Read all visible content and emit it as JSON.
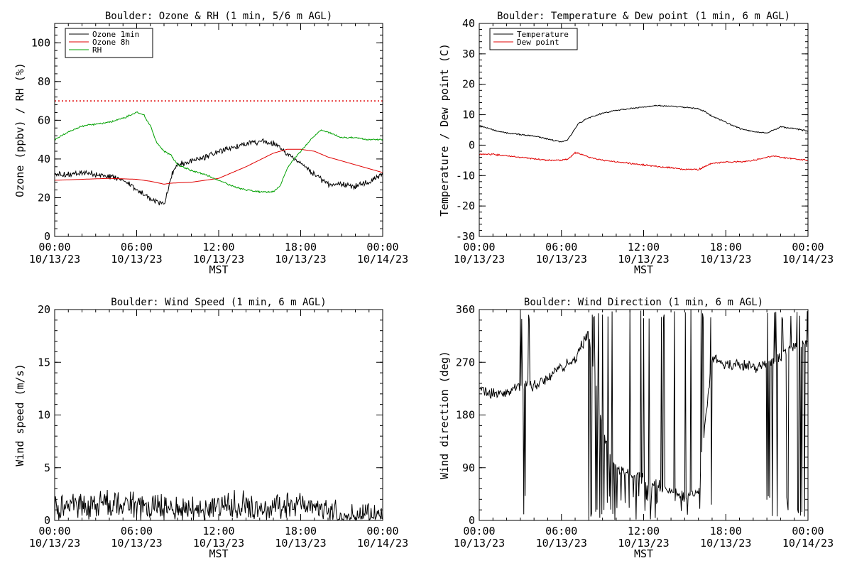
{
  "chart_data": [
    {
      "type": "line",
      "title": "Boulder: Ozone & RH (1 min, 5/6 m AGL)",
      "ylabel": "Ozone (ppbv) / RH (%)",
      "xlabel": "MST",
      "ylim": [
        0,
        110
      ],
      "yticks": [
        0,
        20,
        40,
        60,
        80,
        100
      ],
      "xlim": [
        0,
        24
      ],
      "xticks": [
        0,
        6,
        12,
        18,
        24
      ],
      "xtick_labels": [
        [
          "00:00",
          "10/13/23"
        ],
        [
          "06:00",
          "10/13/23"
        ],
        [
          "12:00",
          "10/13/23"
        ],
        [
          "18:00",
          "10/13/23"
        ],
        [
          "00:00",
          "10/14/23"
        ]
      ],
      "legend": "top-left",
      "reference_line": {
        "y": 70,
        "color": "#e00000",
        "style": "dotted"
      },
      "series": [
        {
          "name": "Ozone 1min",
          "color": "#000000",
          "noise": 1.8,
          "x": [
            0,
            1,
            2,
            3,
            4,
            5,
            5.5,
            6,
            6.5,
            7,
            7.5,
            8,
            8.3,
            8.6,
            9,
            10,
            11,
            12,
            13,
            14,
            15,
            16,
            16.5,
            17,
            17.5,
            18,
            19,
            20,
            21,
            22,
            23,
            24
          ],
          "y": [
            32,
            32,
            33,
            32,
            31,
            29,
            27,
            24,
            22,
            20,
            18,
            17,
            24,
            33,
            37,
            39,
            41,
            44,
            46,
            48,
            49,
            48,
            46,
            43,
            40,
            38,
            32,
            27,
            27,
            26,
            28,
            32
          ]
        },
        {
          "name": "Ozone 8h",
          "color": "#e00000",
          "noise": 0,
          "x": [
            0,
            2,
            4,
            6,
            7,
            8,
            8.5,
            10,
            12,
            14,
            16,
            17,
            17.5,
            18,
            19,
            20,
            22,
            24
          ],
          "y": [
            29,
            29.5,
            30,
            29.5,
            28.5,
            27,
            27.5,
            28,
            30,
            36,
            43,
            45,
            45,
            45,
            44,
            41,
            37,
            33
          ]
        },
        {
          "name": "RH",
          "color": "#00a000",
          "noise": 0.5,
          "x": [
            0,
            0.5,
            1,
            2,
            3,
            4,
            5,
            6,
            6.5,
            7,
            7.5,
            8,
            8.5,
            9,
            10,
            11,
            12,
            13,
            14,
            15,
            16,
            16.5,
            17,
            17.5,
            18,
            18.5,
            19,
            19.5,
            20,
            21,
            22,
            23,
            24
          ],
          "y": [
            50,
            52,
            54,
            57,
            58,
            59,
            61,
            64,
            63,
            57,
            48,
            44,
            42,
            37,
            34,
            32,
            29,
            26,
            24,
            23,
            23,
            26,
            35,
            40,
            44,
            48,
            52,
            55,
            54,
            51,
            51,
            50,
            50
          ]
        }
      ]
    },
    {
      "type": "line",
      "title": "Boulder: Temperature & Dew point (1 min, 6 m AGL)",
      "ylabel": "Temperature / Dew point (C)",
      "xlabel": "MST",
      "ylim": [
        -30,
        40
      ],
      "yticks": [
        -30,
        -20,
        -10,
        0,
        10,
        20,
        30,
        40
      ],
      "xlim": [
        0,
        24
      ],
      "xticks": [
        0,
        6,
        12,
        18,
        24
      ],
      "xtick_labels": [
        [
          "00:00",
          "10/13/23"
        ],
        [
          "06:00",
          "10/13/23"
        ],
        [
          "12:00",
          "10/13/23"
        ],
        [
          "18:00",
          "10/13/23"
        ],
        [
          "00:00",
          "10/14/23"
        ]
      ],
      "legend": "top-left",
      "series": [
        {
          "name": "Temperature",
          "color": "#000000",
          "noise": 0.25,
          "x": [
            0,
            1,
            2,
            3,
            4,
            5,
            5.5,
            6,
            6.4,
            6.8,
            7.2,
            8,
            9,
            10,
            11,
            12,
            13,
            14,
            15,
            16,
            16.5,
            17,
            18,
            19,
            20,
            21,
            21.5,
            22,
            23,
            24
          ],
          "y": [
            6.5,
            5,
            4,
            3.5,
            3,
            2,
            1.5,
            1,
            1.5,
            4,
            7,
            9,
            10.5,
            11.5,
            12,
            12.5,
            13,
            12.8,
            12.5,
            12,
            11,
            9.5,
            7.5,
            5.5,
            4.5,
            4,
            5,
            6,
            5.5,
            4.5
          ]
        },
        {
          "name": "Dew point",
          "color": "#e00000",
          "noise": 0.3,
          "x": [
            0,
            1,
            2,
            3,
            4,
            5,
            6,
            6.5,
            7,
            7.5,
            8,
            9,
            10,
            11,
            12,
            13,
            14,
            15,
            16,
            16.5,
            17,
            18,
            19,
            20,
            21,
            21.5,
            22,
            23,
            24
          ],
          "y": [
            -3,
            -3,
            -3.5,
            -4,
            -4.5,
            -5,
            -5,
            -4.5,
            -2.5,
            -3,
            -4,
            -5,
            -5.5,
            -6,
            -6.5,
            -7,
            -7.5,
            -8,
            -8,
            -7,
            -6,
            -5.5,
            -5.5,
            -5,
            -4,
            -3.5,
            -4,
            -4.5,
            -5
          ]
        }
      ]
    },
    {
      "type": "line",
      "title": "Boulder: Wind Speed (1 min, 6 m AGL)",
      "ylabel": "Wind speed (m/s)",
      "xlabel": "MST",
      "ylim": [
        0,
        20
      ],
      "yticks": [
        0,
        5,
        10,
        15,
        20
      ],
      "xlim": [
        0,
        24
      ],
      "xticks": [
        0,
        6,
        12,
        18,
        24
      ],
      "xtick_labels": [
        [
          "00:00",
          "10/13/23"
        ],
        [
          "06:00",
          "10/13/23"
        ],
        [
          "12:00",
          "10/13/23"
        ],
        [
          "18:00",
          "10/13/23"
        ],
        [
          "00:00",
          "10/14/23"
        ]
      ],
      "series": [
        {
          "color": "#000000",
          "noise": 1.5,
          "x": [
            0,
            1,
            2,
            3,
            4,
            5,
            6,
            7,
            8,
            9,
            10,
            11,
            12,
            13,
            14,
            15,
            16,
            17,
            18,
            19,
            20,
            21,
            22,
            23,
            24
          ],
          "y": [
            1.2,
            1.5,
            1.2,
            1.4,
            1.6,
            1.6,
            1.4,
            1.2,
            1.1,
            1.2,
            1.0,
            1.2,
            1.3,
            1.4,
            1.5,
            1.3,
            1.2,
            1.4,
            1.5,
            1.3,
            0.9,
            0.6,
            0.4,
            0.3,
            0.3
          ]
        }
      ]
    },
    {
      "type": "line",
      "title": "Boulder: Wind Direction (1 min, 6 m AGL)",
      "ylabel": "Wind direction (deg)",
      "xlabel": "MST",
      "ylim": [
        0,
        360
      ],
      "yticks": [
        0,
        90,
        180,
        270,
        360
      ],
      "xlim": [
        0,
        24
      ],
      "xticks": [
        0,
        6,
        12,
        18,
        24
      ],
      "xtick_labels": [
        [
          "00:00",
          "10/13/23"
        ],
        [
          "06:00",
          "10/13/23"
        ],
        [
          "12:00",
          "10/13/23"
        ],
        [
          "18:00",
          "10/13/23"
        ],
        [
          "00:00",
          "10/14/23"
        ]
      ],
      "series": [
        {
          "color": "#000000",
          "noise": 12,
          "x": [
            0,
            1,
            2,
            3,
            4,
            5,
            6,
            7,
            7.5,
            8,
            9,
            10,
            11,
            12,
            13,
            14,
            15,
            16,
            17,
            18,
            19,
            20,
            21,
            22,
            23,
            24
          ],
          "y": [
            220,
            215,
            220,
            230,
            230,
            245,
            260,
            275,
            300,
            320,
            150,
            90,
            80,
            70,
            60,
            50,
            40,
            50,
            280,
            265,
            265,
            260,
            270,
            280,
            300,
            300
          ],
          "wild": [
            [
              3.0,
              3.7,
              0.25
            ],
            [
              8.0,
              17.0,
              0.35
            ],
            [
              21.0,
              24.0,
              0.35
            ]
          ]
        }
      ]
    }
  ]
}
